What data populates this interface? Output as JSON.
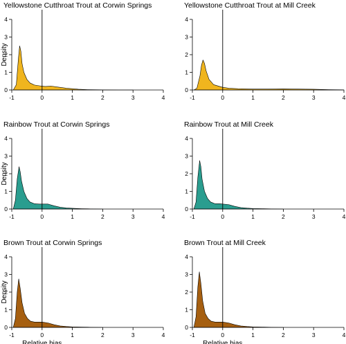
{
  "colors": {
    "yellowstone": "#F0B51E",
    "rainbow": "#2A9D8F",
    "brown": "#A65F10",
    "outline": "#000000"
  },
  "chart_data": [
    {
      "type": "area",
      "title": "Yellowstone Cutthroat Trout at Corwin Springs",
      "xlabel": "",
      "ylabel": "Density",
      "xlim": [
        -1,
        4
      ],
      "ylim": [
        0,
        4
      ],
      "xticks": [
        "-1",
        "0",
        "1",
        "2",
        "3",
        "4"
      ],
      "yticks": [
        "0",
        "1",
        "2",
        "3",
        "4"
      ],
      "vline": 0,
      "color_key": "yellowstone",
      "x": [
        -0.95,
        -0.85,
        -0.78,
        -0.74,
        -0.7,
        -0.66,
        -0.6,
        -0.5,
        -0.4,
        -0.25,
        -0.1,
        0.0,
        0.1,
        0.3,
        0.5,
        0.8,
        1.0,
        1.2,
        1.5,
        2.0,
        2.5,
        3.0
      ],
      "y": [
        0.0,
        0.3,
        1.8,
        2.5,
        2.2,
        1.5,
        1.0,
        0.6,
        0.4,
        0.28,
        0.24,
        0.22,
        0.2,
        0.22,
        0.17,
        0.1,
        0.07,
        0.04,
        0.02,
        0.01,
        0.0,
        0.0
      ]
    },
    {
      "type": "area",
      "title": "Yellowstone Cutthroat Trout at Mill Creek",
      "xlabel": "",
      "ylabel": "",
      "xlim": [
        -1,
        4
      ],
      "ylim": [
        0,
        4
      ],
      "xticks": [
        "-1",
        "0",
        "1",
        "2",
        "3",
        "4"
      ],
      "yticks": [
        "0",
        "1",
        "2",
        "3",
        "4"
      ],
      "vline": 0,
      "color_key": "yellowstone",
      "x": [
        -0.95,
        -0.85,
        -0.75,
        -0.7,
        -0.65,
        -0.6,
        -0.55,
        -0.45,
        -0.3,
        -0.1,
        0.0,
        0.2,
        0.5,
        1.0,
        1.5,
        2.0,
        2.5,
        3.0,
        3.5,
        4.0
      ],
      "y": [
        0.0,
        0.1,
        0.8,
        1.4,
        1.7,
        1.5,
        1.1,
        0.6,
        0.3,
        0.2,
        0.15,
        0.1,
        0.07,
        0.05,
        0.05,
        0.06,
        0.05,
        0.04,
        0.02,
        0.01
      ]
    },
    {
      "type": "area",
      "title": "Rainbow Trout at Corwin Springs",
      "xlabel": "",
      "ylabel": "Density",
      "xlim": [
        -1,
        4
      ],
      "ylim": [
        0,
        4
      ],
      "xticks": [
        "-1",
        "0",
        "1",
        "2",
        "3",
        "4"
      ],
      "yticks": [
        "0",
        "1",
        "2",
        "3",
        "4"
      ],
      "vline": 0,
      "color_key": "rainbow",
      "x": [
        -0.95,
        -0.88,
        -0.82,
        -0.76,
        -0.72,
        -0.68,
        -0.6,
        -0.5,
        -0.4,
        -0.25,
        -0.1,
        0.0,
        0.2,
        0.4,
        0.6,
        0.8,
        1.0,
        1.3,
        1.6,
        2.0
      ],
      "y": [
        0.0,
        0.5,
        1.7,
        2.4,
        2.1,
        1.6,
        1.0,
        0.6,
        0.4,
        0.3,
        0.28,
        0.28,
        0.28,
        0.18,
        0.1,
        0.06,
        0.04,
        0.02,
        0.01,
        0.0
      ]
    },
    {
      "type": "area",
      "title": "Rainbow Trout at Mill Creek",
      "xlabel": "",
      "ylabel": "",
      "xlim": [
        -1,
        4
      ],
      "ylim": [
        0,
        4
      ],
      "xticks": [
        "-1",
        "0",
        "1",
        "2",
        "3",
        "4"
      ],
      "yticks": [
        "0",
        "1",
        "2",
        "3",
        "4"
      ],
      "vline": 0,
      "color_key": "rainbow",
      "x": [
        -0.95,
        -0.88,
        -0.82,
        -0.76,
        -0.72,
        -0.68,
        -0.6,
        -0.5,
        -0.4,
        -0.25,
        -0.1,
        0.0,
        0.2,
        0.4,
        0.6,
        0.8,
        1.0,
        1.3,
        1.6,
        2.0
      ],
      "y": [
        0.0,
        0.4,
        1.8,
        2.75,
        2.4,
        1.7,
        1.0,
        0.6,
        0.4,
        0.3,
        0.3,
        0.28,
        0.25,
        0.15,
        0.08,
        0.05,
        0.03,
        0.02,
        0.01,
        0.0
      ]
    },
    {
      "type": "area",
      "title": "Brown Trout at Corwin Springs",
      "xlabel": "Relative bias",
      "ylabel": "Density",
      "xlim": [
        -1,
        4
      ],
      "ylim": [
        0,
        4
      ],
      "xticks": [
        "-1",
        "0",
        "1",
        "2",
        "3",
        "4"
      ],
      "yticks": [
        "0",
        "1",
        "2",
        "3",
        "4"
      ],
      "vline": 0,
      "color_key": "brown",
      "x": [
        -0.95,
        -0.88,
        -0.82,
        -0.77,
        -0.72,
        -0.66,
        -0.58,
        -0.48,
        -0.38,
        -0.25,
        -0.1,
        0.0,
        0.2,
        0.4,
        0.6,
        0.8,
        1.0,
        1.3,
        1.6,
        2.0
      ],
      "y": [
        0.0,
        0.5,
        2.0,
        2.75,
        2.2,
        1.4,
        0.8,
        0.5,
        0.35,
        0.3,
        0.3,
        0.3,
        0.25,
        0.15,
        0.08,
        0.05,
        0.03,
        0.02,
        0.01,
        0.0
      ]
    },
    {
      "type": "area",
      "title": "Brown Trout at Mill Creek",
      "xlabel": "Relative bias",
      "ylabel": "",
      "xlim": [
        -1,
        4
      ],
      "ylim": [
        0,
        4
      ],
      "xticks": [
        "-1",
        "0",
        "1",
        "2",
        "3",
        "4"
      ],
      "yticks": [
        "0",
        "1",
        "2",
        "3",
        "4"
      ],
      "vline": 0,
      "color_key": "brown",
      "x": [
        -0.95,
        -0.88,
        -0.82,
        -0.77,
        -0.72,
        -0.66,
        -0.58,
        -0.48,
        -0.38,
        -0.25,
        -0.1,
        0.0,
        0.2,
        0.4,
        0.6,
        0.8,
        1.0,
        1.3,
        1.6,
        2.0
      ],
      "y": [
        0.0,
        0.6,
        2.3,
        3.15,
        2.5,
        1.5,
        0.8,
        0.5,
        0.35,
        0.3,
        0.3,
        0.3,
        0.25,
        0.15,
        0.08,
        0.05,
        0.03,
        0.02,
        0.01,
        0.0
      ]
    }
  ]
}
